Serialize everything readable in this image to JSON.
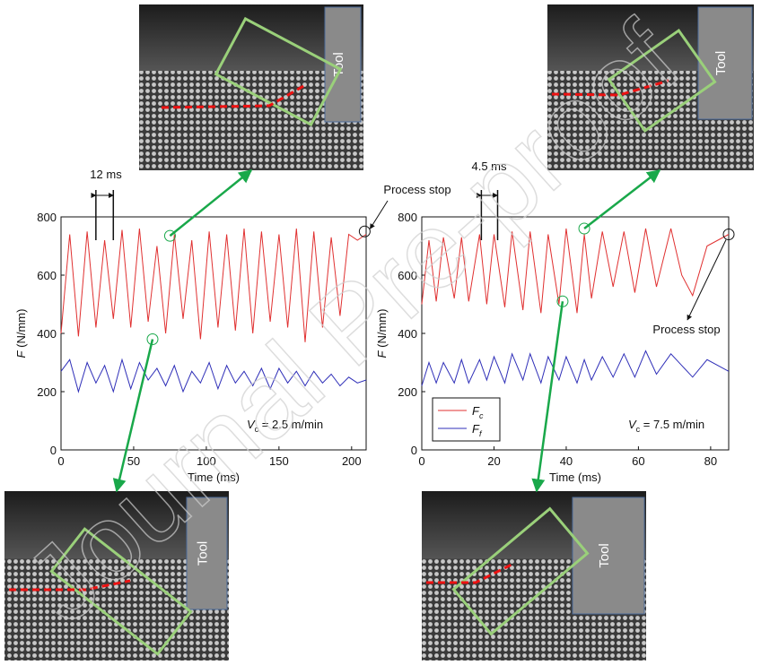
{
  "watermark": "Journal Pre-proof",
  "micrographs": [
    {
      "label": "Tool"
    },
    {
      "label": "Tool"
    },
    {
      "label": "Tool"
    },
    {
      "label": "Tool"
    }
  ],
  "chart_data": [
    {
      "type": "line",
      "xlabel": "Time (ms)",
      "ylabel": {
        "symbol": "F",
        "text": "(N/mm)"
      },
      "xlim": [
        0,
        210
      ],
      "xticks": [
        0,
        50,
        100,
        150,
        200
      ],
      "ylim": [
        0,
        800
      ],
      "yticks": [
        0,
        200,
        400,
        600,
        800
      ],
      "annotations": [
        "12 ms",
        "Process stop"
      ],
      "speed": {
        "symbol": "V",
        "subscript": "c",
        "text": "= 2.5 m/min"
      },
      "x": [
        0,
        6,
        12,
        18,
        24,
        30,
        36,
        42,
        48,
        54,
        60,
        66,
        72,
        78,
        84,
        90,
        96,
        102,
        108,
        114,
        120,
        126,
        132,
        138,
        144,
        150,
        156,
        162,
        168,
        174,
        180,
        186,
        192,
        198,
        204,
        210
      ],
      "series": [
        {
          "name": "F",
          "subscript": "c",
          "color": "#e03030",
          "values": [
            400,
            740,
            390,
            750,
            420,
            720,
            450,
            755,
            420,
            760,
            440,
            700,
            400,
            740,
            450,
            720,
            380,
            750,
            420,
            740,
            410,
            760,
            400,
            750,
            440,
            740,
            420,
            760,
            370,
            750,
            420,
            730,
            460,
            740,
            720,
            740
          ]
        },
        {
          "name": "F",
          "subscript": "f",
          "color": "#2f2fb8",
          "values": [
            270,
            310,
            200,
            300,
            230,
            290,
            200,
            310,
            210,
            300,
            240,
            280,
            220,
            290,
            200,
            270,
            230,
            300,
            210,
            290,
            230,
            270,
            220,
            280,
            210,
            280,
            230,
            270,
            220,
            270,
            230,
            260,
            220,
            250,
            230,
            240
          ]
        }
      ]
    },
    {
      "type": "line",
      "xlabel": "Time (ms)",
      "ylabel": {
        "symbol": "F",
        "text": "(N/mm)"
      },
      "xlim": [
        0,
        85
      ],
      "xticks": [
        0,
        20,
        40,
        60,
        80
      ],
      "ylim": [
        0,
        800
      ],
      "yticks": [
        0,
        200,
        400,
        600,
        800
      ],
      "annotations": [
        "4.5 ms",
        "Process stop"
      ],
      "speed": {
        "symbol": "V",
        "subscript": "c",
        "text": "= 7.5 m/min"
      },
      "legend": "lower left",
      "x": [
        0,
        2,
        4,
        6,
        9,
        11,
        13,
        16,
        18,
        20,
        23,
        25,
        28,
        30,
        33,
        35,
        38,
        40,
        43,
        45,
        47,
        50,
        53,
        56,
        59,
        62,
        65,
        69,
        72,
        75,
        79,
        85
      ],
      "series": [
        {
          "name": "F",
          "subscript": "c",
          "color": "#e03030",
          "values": [
            500,
            720,
            510,
            730,
            520,
            730,
            510,
            740,
            500,
            740,
            490,
            750,
            480,
            750,
            470,
            740,
            500,
            760,
            470,
            740,
            520,
            750,
            560,
            750,
            540,
            760,
            560,
            760,
            600,
            530,
            700,
            740
          ]
        },
        {
          "name": "F",
          "subscript": "f",
          "color": "#2f2fb8",
          "values": [
            220,
            300,
            230,
            300,
            230,
            310,
            230,
            310,
            240,
            320,
            230,
            330,
            240,
            330,
            230,
            320,
            240,
            320,
            230,
            310,
            240,
            320,
            250,
            330,
            250,
            340,
            260,
            330,
            290,
            250,
            310,
            270
          ]
        }
      ]
    }
  ]
}
